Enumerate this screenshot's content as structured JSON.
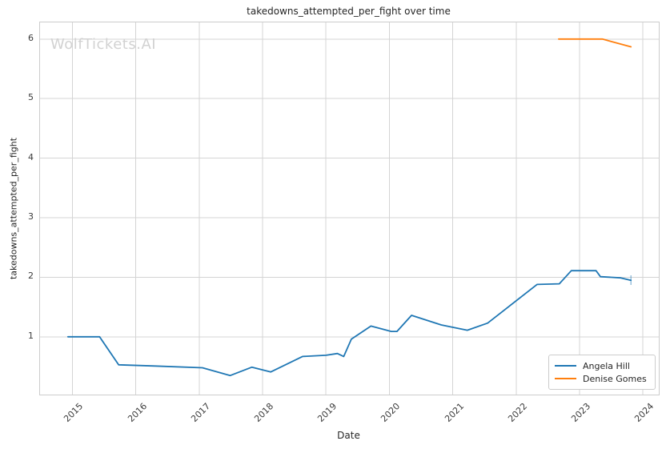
{
  "watermark": "WolfTickets.AI",
  "chart_data": {
    "type": "line",
    "title": "takedowns_attempted_per_fight over time",
    "xlabel": "Date",
    "ylabel": "takedowns_attempted_per_fight",
    "xlim": [
      2014.49,
      2024.25
    ],
    "ylim": [
      0.03,
      6.28
    ],
    "x_ticks": [
      2015,
      2016,
      2017,
      2018,
      2019,
      2020,
      2021,
      2022,
      2023,
      2024
    ],
    "y_ticks": [
      1,
      2,
      3,
      4,
      5,
      6
    ],
    "grid": true,
    "grid_color": "#d4d4d4",
    "legend_position": "lower right",
    "series": [
      {
        "name": "Angela Hill",
        "color": "#1f77b4",
        "x": [
          2014.93,
          2015.43,
          2015.73,
          2016.3,
          2017.05,
          2017.49,
          2017.83,
          2018.13,
          2018.63,
          2019.0,
          2019.18,
          2019.28,
          2019.4,
          2019.71,
          2020.03,
          2020.12,
          2020.35,
          2020.82,
          2021.23,
          2021.55,
          2022.33,
          2022.68,
          2022.87,
          2023.26,
          2023.33,
          2023.65,
          2023.81
        ],
        "y": [
          1.0,
          1.0,
          0.53,
          0.51,
          0.48,
          0.35,
          0.49,
          0.41,
          0.67,
          0.69,
          0.72,
          0.67,
          0.96,
          1.18,
          1.09,
          1.09,
          1.36,
          1.2,
          1.11,
          1.23,
          1.88,
          1.89,
          2.11,
          2.11,
          2.01,
          1.99,
          1.95
        ],
        "end_tick": {
          "x": 2023.81,
          "y1": 1.87,
          "y2": 2.03
        }
      },
      {
        "name": "Denise Gomes",
        "color": "#ff7f0e",
        "x": [
          2022.67,
          2023.0,
          2023.36,
          2023.81
        ],
        "y": [
          6.0,
          6.0,
          6.0,
          5.87
        ]
      }
    ]
  }
}
